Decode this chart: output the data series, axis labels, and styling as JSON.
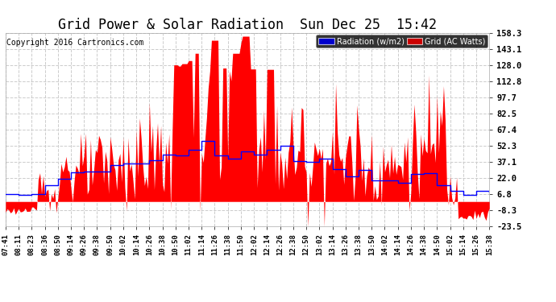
{
  "title": "Grid Power & Solar Radiation  Sun Dec 25  15:42",
  "copyright": "Copyright 2016 Cartronics.com",
  "legend_radiation": "Radiation (w/m2)",
  "legend_grid": "Grid (AC Watts)",
  "yticks": [
    158.3,
    143.1,
    128.0,
    112.8,
    97.7,
    82.5,
    67.4,
    52.3,
    37.1,
    22.0,
    6.8,
    -8.3,
    -23.5
  ],
  "ymin": -23.5,
  "ymax": 158.3,
  "xtick_labels": [
    "07:41",
    "08:11",
    "08:23",
    "08:36",
    "08:50",
    "09:14",
    "09:26",
    "09:38",
    "09:50",
    "10:02",
    "10:14",
    "10:26",
    "10:38",
    "10:50",
    "11:02",
    "11:14",
    "11:26",
    "11:38",
    "11:50",
    "12:02",
    "12:14",
    "12:26",
    "12:38",
    "12:50",
    "13:02",
    "13:14",
    "13:26",
    "13:38",
    "13:50",
    "14:02",
    "14:14",
    "14:26",
    "14:38",
    "14:50",
    "15:02",
    "15:14",
    "15:26",
    "15:38"
  ],
  "bg_color": "#ffffff",
  "plot_bg": "#ffffff",
  "title_color": "#000000",
  "grid_color": "#cccccc",
  "radiation_color": "#0000ff",
  "grid_ac_color": "#ff0000",
  "title_fontsize": 12,
  "copyright_fontsize": 7
}
